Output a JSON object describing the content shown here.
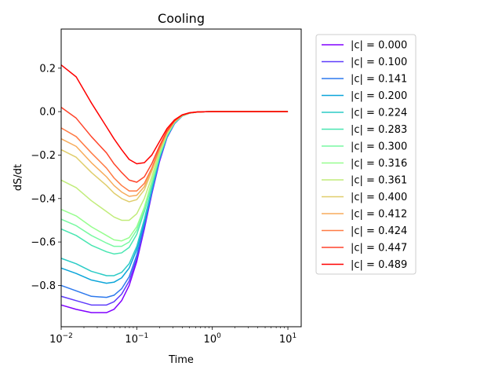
{
  "chart_data": {
    "type": "line",
    "title": "Cooling",
    "xlabel": "Time",
    "ylabel": "dS/dt",
    "xscale": "log",
    "xlim": [
      0.01,
      15
    ],
    "ylim": [
      -0.99,
      0.38
    ],
    "xticks": [
      {
        "value": 0.01,
        "base": "10",
        "exp": "−2"
      },
      {
        "value": 0.1,
        "base": "10",
        "exp": "−1"
      },
      {
        "value": 1,
        "base": "10",
        "exp": "0"
      },
      {
        "value": 10,
        "base": "10",
        "exp": "1"
      }
    ],
    "yticks": [
      {
        "value": 0.2,
        "label": "0.2"
      },
      {
        "value": 0.0,
        "label": "0.0"
      },
      {
        "value": -0.2,
        "label": "−0.2"
      },
      {
        "value": -0.4,
        "label": "−0.4"
      },
      {
        "value": -0.6,
        "label": "−0.6"
      },
      {
        "value": -0.8,
        "label": "−0.8"
      }
    ],
    "grid": false,
    "legend_position": "outside-right",
    "x": [
      0.01,
      0.0158,
      0.0251,
      0.0398,
      0.05,
      0.0631,
      0.0794,
      0.1,
      0.126,
      0.158,
      0.2,
      0.251,
      0.316,
      0.398,
      0.5,
      0.631,
      0.794,
      1.0,
      1.58,
      2.51,
      3.98,
      6.31,
      10.0
    ],
    "series": [
      {
        "name": "|c| = 0.000",
        "color": "#8000ff",
        "values": [
          -0.89,
          -0.91,
          -0.925,
          -0.925,
          -0.91,
          -0.87,
          -0.8,
          -0.69,
          -0.54,
          -0.38,
          -0.23,
          -0.12,
          -0.055,
          -0.02,
          -0.007,
          -0.002,
          -0.0005,
          0,
          0,
          0,
          0,
          0,
          0
        ]
      },
      {
        "name": "|c| = 0.100",
        "color": "#5e3cfb",
        "values": [
          -0.85,
          -0.87,
          -0.89,
          -0.89,
          -0.875,
          -0.84,
          -0.78,
          -0.675,
          -0.53,
          -0.375,
          -0.225,
          -0.12,
          -0.055,
          -0.02,
          -0.007,
          -0.002,
          -0.0005,
          0,
          0,
          0,
          0,
          0,
          0
        ]
      },
      {
        "name": "|c| = 0.141",
        "color": "#2d79ed",
        "values": [
          -0.8,
          -0.825,
          -0.85,
          -0.855,
          -0.845,
          -0.815,
          -0.76,
          -0.66,
          -0.52,
          -0.37,
          -0.22,
          -0.118,
          -0.054,
          -0.02,
          -0.007,
          -0.002,
          -0.0005,
          0,
          0,
          0,
          0,
          0,
          0
        ]
      },
      {
        "name": "|c| = 0.200",
        "color": "#0ba5d9",
        "values": [
          -0.72,
          -0.745,
          -0.775,
          -0.79,
          -0.785,
          -0.765,
          -0.72,
          -0.635,
          -0.505,
          -0.36,
          -0.215,
          -0.115,
          -0.053,
          -0.02,
          -0.007,
          -0.002,
          -0.0005,
          0,
          0,
          0,
          0,
          0,
          0
        ]
      },
      {
        "name": "|c| = 0.224",
        "color": "#2bcbc6",
        "values": [
          -0.675,
          -0.7,
          -0.735,
          -0.755,
          -0.755,
          -0.74,
          -0.7,
          -0.62,
          -0.495,
          -0.355,
          -0.212,
          -0.113,
          -0.052,
          -0.02,
          -0.007,
          -0.002,
          -0.0005,
          0,
          0,
          0,
          0,
          0,
          0
        ]
      },
      {
        "name": "|c| = 0.283",
        "color": "#49e6b1",
        "values": [
          -0.54,
          -0.57,
          -0.615,
          -0.645,
          -0.655,
          -0.65,
          -0.625,
          -0.565,
          -0.46,
          -0.335,
          -0.205,
          -0.11,
          -0.05,
          -0.019,
          -0.007,
          -0.002,
          -0.0005,
          0,
          0,
          0,
          0,
          0,
          0
        ]
      },
      {
        "name": "|c| = 0.300",
        "color": "#78f9a2",
        "values": [
          -0.495,
          -0.525,
          -0.57,
          -0.605,
          -0.62,
          -0.62,
          -0.6,
          -0.545,
          -0.45,
          -0.33,
          -0.2,
          -0.108,
          -0.05,
          -0.019,
          -0.007,
          -0.002,
          -0.0005,
          0,
          0,
          0,
          0,
          0,
          0
        ]
      },
      {
        "name": "|c| = 0.316",
        "color": "#97fe8f",
        "values": [
          -0.45,
          -0.48,
          -0.53,
          -0.57,
          -0.59,
          -0.595,
          -0.58,
          -0.53,
          -0.44,
          -0.32,
          -0.197,
          -0.106,
          -0.049,
          -0.019,
          -0.007,
          -0.002,
          -0.0005,
          0,
          0,
          0,
          0,
          0,
          0
        ]
      },
      {
        "name": "|c| = 0.361",
        "color": "#c1ec7a",
        "values": [
          -0.315,
          -0.35,
          -0.41,
          -0.46,
          -0.485,
          -0.5,
          -0.5,
          -0.47,
          -0.4,
          -0.3,
          -0.187,
          -0.102,
          -0.047,
          -0.018,
          -0.006,
          -0.002,
          -0.0005,
          0,
          0,
          0,
          0,
          0,
          0
        ]
      },
      {
        "name": "|c| = 0.400",
        "color": "#e0cd6c",
        "values": [
          -0.175,
          -0.21,
          -0.28,
          -0.34,
          -0.375,
          -0.4,
          -0.415,
          -0.405,
          -0.36,
          -0.275,
          -0.175,
          -0.097,
          -0.045,
          -0.018,
          -0.006,
          -0.002,
          -0.0005,
          0,
          0,
          0,
          0,
          0,
          0
        ]
      },
      {
        "name": "|c| = 0.412",
        "color": "#f7ab5b",
        "values": [
          -0.125,
          -0.16,
          -0.235,
          -0.3,
          -0.34,
          -0.37,
          -0.39,
          -0.385,
          -0.345,
          -0.267,
          -0.172,
          -0.095,
          -0.045,
          -0.017,
          -0.006,
          -0.002,
          -0.0005,
          0,
          0,
          0,
          0,
          0,
          0
        ]
      },
      {
        "name": "|c| = 0.424",
        "color": "#ff7b45",
        "values": [
          -0.075,
          -0.115,
          -0.19,
          -0.26,
          -0.305,
          -0.34,
          -0.365,
          -0.365,
          -0.33,
          -0.26,
          -0.168,
          -0.093,
          -0.044,
          -0.017,
          -0.006,
          -0.002,
          -0.0005,
          0,
          0,
          0,
          0,
          0,
          0
        ]
      },
      {
        "name": "|c| = 0.447",
        "color": "#ff442b",
        "values": [
          0.02,
          -0.03,
          -0.115,
          -0.19,
          -0.24,
          -0.28,
          -0.315,
          -0.325,
          -0.3,
          -0.24,
          -0.158,
          -0.088,
          -0.042,
          -0.016,
          -0.006,
          -0.002,
          -0.0005,
          0,
          0,
          0,
          0,
          0,
          0
        ]
      },
      {
        "name": "|c| = 0.489",
        "color": "#ff0000",
        "values": [
          0.215,
          0.16,
          0.04,
          -0.07,
          -0.125,
          -0.175,
          -0.22,
          -0.24,
          -0.235,
          -0.2,
          -0.138,
          -0.078,
          -0.038,
          -0.015,
          -0.005,
          -0.0015,
          -0.0004,
          0,
          0,
          0,
          0,
          0,
          0
        ]
      }
    ]
  }
}
